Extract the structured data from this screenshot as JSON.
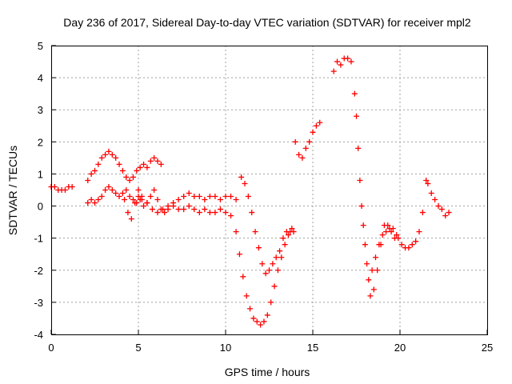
{
  "chart_data": {
    "type": "scatter",
    "title": "Day 236 of 2017, Sidereal Day-to-day VTEC variation (SDTVAR) for receiver mpl2",
    "xlabel": "GPS time / hours",
    "ylabel": "SDTVAR / TECUs",
    "xlim": [
      0,
      25
    ],
    "ylim": [
      -4,
      5
    ],
    "xticks": [
      "0",
      "5",
      "10",
      "15",
      "20",
      "25"
    ],
    "yticks": [
      "-4",
      "-3",
      "-2",
      "-1",
      "0",
      "1",
      "2",
      "3",
      "4",
      "5"
    ],
    "grid": true,
    "marker": "plus",
    "color": "#ff0000",
    "series": [
      {
        "x": [
          0.0,
          0.2,
          0.4,
          0.6,
          0.8,
          1.0,
          1.2,
          2.1,
          2.3,
          2.5,
          2.7,
          2.9,
          3.1,
          3.3,
          3.5,
          3.7,
          3.9,
          4.1,
          4.3,
          4.5,
          4.7,
          4.9,
          5.1,
          5.3,
          5.5,
          5.7,
          5.9,
          6.1,
          6.3,
          2.1,
          2.3,
          2.5,
          2.7,
          2.9,
          3.1,
          3.3,
          3.5,
          3.7,
          3.9,
          4.1,
          4.3,
          4.5,
          4.7,
          4.9,
          5.1,
          5.3,
          5.5,
          5.7,
          5.9,
          6.1,
          6.3,
          6.5,
          6.7,
          7.0,
          7.3,
          7.6,
          7.9,
          8.2,
          8.5,
          8.8,
          9.1,
          9.4,
          9.7,
          10.0,
          10.3,
          10.6,
          10.8,
          11.0,
          11.2,
          11.4,
          11.6,
          11.8,
          12.0,
          12.2,
          12.4,
          12.6,
          12.8,
          13.0,
          13.2,
          13.4,
          13.6,
          13.8,
          5.0,
          5.2,
          5.5,
          5.8,
          6.1,
          6.4,
          6.7,
          7.0,
          7.3,
          7.6,
          7.9,
          8.2,
          8.5,
          8.8,
          9.1,
          9.4,
          9.7,
          10.0,
          10.3,
          10.6,
          10.9,
          11.1,
          11.3,
          11.5,
          11.7,
          11.9,
          12.1,
          12.3,
          12.5,
          12.7,
          12.9,
          13.1,
          13.3,
          13.5,
          13.7,
          13.9,
          14.0,
          14.2,
          14.4,
          14.6,
          14.8,
          15.0,
          15.2,
          15.4,
          16.2,
          16.4,
          16.6,
          16.8,
          17.0,
          17.2,
          17.4,
          17.5,
          17.6,
          17.7,
          17.8,
          17.9,
          18.0,
          18.1,
          18.2,
          18.3,
          18.5,
          18.7,
          18.9,
          19.1,
          19.3,
          19.5,
          19.7,
          19.9,
          20.1,
          20.3,
          20.5,
          20.7,
          20.9,
          21.1,
          21.3,
          18.4,
          18.6,
          18.8,
          19.0,
          19.2,
          19.4,
          19.6,
          19.8,
          21.5,
          21.6,
          21.8,
          22.0,
          22.2,
          22.4,
          22.6,
          22.8,
          4.2,
          4.4,
          4.6,
          4.8,
          5.0,
          5.2
        ],
        "y": [
          0.6,
          0.6,
          0.5,
          0.5,
          0.5,
          0.6,
          0.6,
          0.8,
          1.0,
          1.1,
          1.3,
          1.5,
          1.6,
          1.7,
          1.6,
          1.5,
          1.3,
          1.1,
          0.9,
          0.8,
          0.9,
          1.1,
          1.2,
          1.3,
          1.2,
          1.4,
          1.5,
          1.4,
          1.3,
          0.1,
          0.2,
          0.1,
          0.2,
          0.3,
          0.5,
          0.6,
          0.5,
          0.4,
          0.3,
          0.4,
          0.5,
          0.3,
          0.2,
          0.1,
          0.2,
          0.0,
          0.1,
          0.3,
          0.5,
          0.2,
          -0.1,
          -0.2,
          -0.1,
          0.0,
          -0.1,
          -0.1,
          0.0,
          -0.1,
          -0.2,
          -0.1,
          -0.2,
          -0.2,
          -0.1,
          -0.2,
          -0.3,
          -0.8,
          -1.5,
          -2.2,
          -2.8,
          -3.2,
          -3.5,
          -3.6,
          -3.7,
          -3.6,
          -3.4,
          -3.0,
          -2.5,
          -2.0,
          -1.6,
          -1.2,
          -0.9,
          -0.7,
          0.5,
          0.3,
          0.1,
          -0.1,
          -0.2,
          -0.1,
          0.0,
          0.1,
          0.2,
          0.3,
          0.4,
          0.3,
          0.3,
          0.2,
          0.3,
          0.3,
          0.2,
          0.3,
          0.3,
          0.2,
          0.9,
          0.7,
          0.3,
          -0.2,
          -0.8,
          -1.3,
          -1.8,
          -2.1,
          -2.0,
          -1.8,
          -1.6,
          -1.4,
          -1.0,
          -0.8,
          -0.8,
          -0.8,
          2.0,
          1.6,
          1.5,
          1.8,
          2.0,
          2.3,
          2.5,
          2.6,
          4.2,
          4.5,
          4.4,
          4.6,
          4.6,
          4.5,
          3.5,
          2.8,
          1.8,
          0.8,
          0.0,
          -0.6,
          -1.2,
          -1.8,
          -2.3,
          -2.8,
          -2.6,
          -2.0,
          -1.2,
          -0.6,
          -0.6,
          -0.8,
          -1.0,
          -1.0,
          -1.2,
          -1.3,
          -1.3,
          -1.2,
          -1.1,
          -0.8,
          -0.2,
          -2.0,
          -1.6,
          -1.2,
          -0.9,
          -0.8,
          -0.7,
          -0.7,
          -0.9,
          0.8,
          0.7,
          0.4,
          0.2,
          0.0,
          -0.1,
          -0.3,
          -0.2,
          0.2,
          -0.2,
          -0.4,
          0.1,
          0.3,
          0.2
        ]
      }
    ]
  }
}
